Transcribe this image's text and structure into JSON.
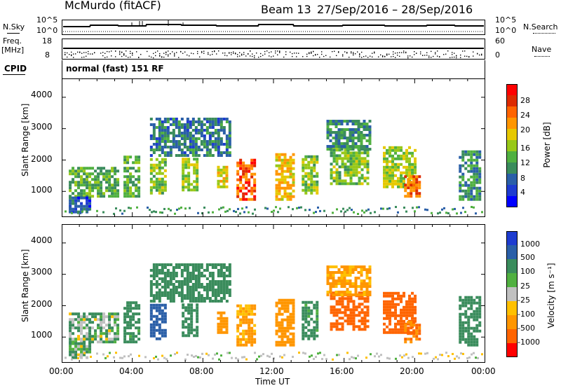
{
  "header": {
    "station": "McMurdo (fitACF)",
    "beam": "Beam 13",
    "date_range": "27/Sep/2016 – 28/Sep/2016"
  },
  "top_strip": {
    "nsky_label": "N.Sky",
    "nsearch_label": "N.Search",
    "noise_tick_top": "10^5",
    "noise_tick_bottom": "10^0",
    "freq_label": "Freq.",
    "freq_unit": "[MHz]",
    "freq_ticks": [
      "18",
      "8"
    ],
    "nave_label": "Nave",
    "nave_ticks": [
      "60",
      "0"
    ],
    "cpid_label": "CPID",
    "cpid_text": "normal (fast) 151 RF"
  },
  "power_panel": {
    "ylabel": "Slant Range [km]",
    "yticks": [
      "4000",
      "3000",
      "2000",
      "1000"
    ],
    "colorbar_label": "Power [dB]",
    "colorbar_ticks": [
      "28",
      "24",
      "20",
      "16",
      "12",
      "8",
      "4"
    ],
    "colors": [
      "#ff0000",
      "#dd2a00",
      "#ff6400",
      "#ff9600",
      "#e6c800",
      "#98c818",
      "#50b040",
      "#3a8c5c",
      "#2a5fa8",
      "#1e3cd0",
      "#0000ff"
    ]
  },
  "velocity_panel": {
    "ylabel": "Slant Range [km]",
    "yticks": [
      "4000",
      "3000",
      "2000",
      "1000"
    ],
    "colorbar_label": "Velocity [m s⁻¹]",
    "colorbar_ticks": [
      "1000",
      "500",
      "100",
      "25",
      "-25",
      "-100",
      "-500",
      "-1000"
    ],
    "colors": [
      "#1e3cd0",
      "#2a5fa8",
      "#3a8c5c",
      "#50b040",
      "#c0c0c0",
      "#ffc000",
      "#ff9600",
      "#ff6400",
      "#ff0000"
    ]
  },
  "xaxis": {
    "label": "Time UT",
    "ticks": [
      "00:00",
      "04:00",
      "08:00",
      "12:00",
      "16:00",
      "20:00",
      "00:00"
    ]
  },
  "chart_data": [
    {
      "type": "heatmap",
      "title": "McMurdo (fitACF) Beam 13 27/Sep/2016 – 28/Sep/2016",
      "xlabel": "Time UT",
      "ylabel": "Slant Range [km]",
      "xlim": [
        "00:00",
        "24:00"
      ],
      "ylim": [
        180,
        4600
      ],
      "colorbar": "Power [dB]",
      "clim": [
        0,
        30
      ],
      "patches": [
        {
          "t": [
            0.4,
            3.2
          ],
          "r": [
            800,
            1700
          ],
          "v": 12
        },
        {
          "t": [
            0.4,
            1.6
          ],
          "r": [
            300,
            800
          ],
          "v": 6
        },
        {
          "t": [
            3.5,
            4.3
          ],
          "r": [
            800,
            2100
          ],
          "v": 12
        },
        {
          "t": [
            5.0,
            5.8
          ],
          "r": [
            900,
            2000
          ],
          "v": 14
        },
        {
          "t": [
            6.8,
            7.6
          ],
          "r": [
            1000,
            2000
          ],
          "v": 16
        },
        {
          "t": [
            8.8,
            9.3
          ],
          "r": [
            1100,
            1800
          ],
          "v": 18
        },
        {
          "t": [
            9.9,
            11.0
          ],
          "r": [
            700,
            2000
          ],
          "v": 26
        },
        {
          "t": [
            12.1,
            13.2
          ],
          "r": [
            700,
            2200
          ],
          "v": 20
        },
        {
          "t": [
            13.6,
            14.4
          ],
          "r": [
            900,
            2100
          ],
          "v": 14
        },
        {
          "t": [
            15.2,
            17.4
          ],
          "r": [
            1200,
            2400
          ],
          "v": 14
        },
        {
          "t": [
            18.2,
            20.0
          ],
          "r": [
            1100,
            2400
          ],
          "v": 16
        },
        {
          "t": [
            19.4,
            20.2
          ],
          "r": [
            800,
            1500
          ],
          "v": 24
        },
        {
          "t": [
            22.5,
            23.7
          ],
          "r": [
            700,
            2300
          ],
          "v": 10
        },
        {
          "t": [
            5.0,
            9.5
          ],
          "r": [
            2100,
            3300
          ],
          "v": 8
        },
        {
          "t": [
            15.0,
            17.5
          ],
          "r": [
            2300,
            3200
          ],
          "v": 10
        }
      ]
    },
    {
      "type": "heatmap",
      "title": "McMurdo (fitACF) Beam 13 27/Sep/2016 – 28/Sep/2016",
      "xlabel": "Time UT",
      "ylabel": "Slant Range [km]",
      "xlim": [
        "00:00",
        "24:00"
      ],
      "ylim": [
        180,
        4600
      ],
      "colorbar": "Velocity [m s⁻¹]",
      "clim": [
        -1000,
        1000
      ],
      "patches": [
        {
          "t": [
            0.4,
            3.2
          ],
          "r": [
            800,
            1700
          ],
          "v": 60
        },
        {
          "t": [
            0.4,
            1.6
          ],
          "r": [
            300,
            800
          ],
          "v": 40
        },
        {
          "t": [
            3.5,
            4.3
          ],
          "r": [
            800,
            2100
          ],
          "v": 150
        },
        {
          "t": [
            5.0,
            5.8
          ],
          "r": [
            900,
            2000
          ],
          "v": 600
        },
        {
          "t": [
            6.8,
            7.6
          ],
          "r": [
            1000,
            2000
          ],
          "v": 150
        },
        {
          "t": [
            8.8,
            9.3
          ],
          "r": [
            1100,
            1800
          ],
          "v": -200
        },
        {
          "t": [
            9.9,
            11.0
          ],
          "r": [
            700,
            2000
          ],
          "v": -150
        },
        {
          "t": [
            12.1,
            13.2
          ],
          "r": [
            700,
            2200
          ],
          "v": -200
        },
        {
          "t": [
            13.6,
            14.4
          ],
          "r": [
            900,
            2100
          ],
          "v": 150
        },
        {
          "t": [
            15.2,
            17.4
          ],
          "r": [
            1200,
            2400
          ],
          "v": -500
        },
        {
          "t": [
            18.2,
            20.0
          ],
          "r": [
            1100,
            2400
          ],
          "v": -500
        },
        {
          "t": [
            19.4,
            20.2
          ],
          "r": [
            800,
            1500
          ],
          "v": -300
        },
        {
          "t": [
            22.5,
            23.7
          ],
          "r": [
            700,
            2300
          ],
          "v": 200
        },
        {
          "t": [
            5.0,
            9.5
          ],
          "r": [
            2100,
            3300
          ],
          "v": 200
        },
        {
          "t": [
            15.0,
            17.5
          ],
          "r": [
            2300,
            3200
          ],
          "v": -150
        }
      ]
    }
  ]
}
